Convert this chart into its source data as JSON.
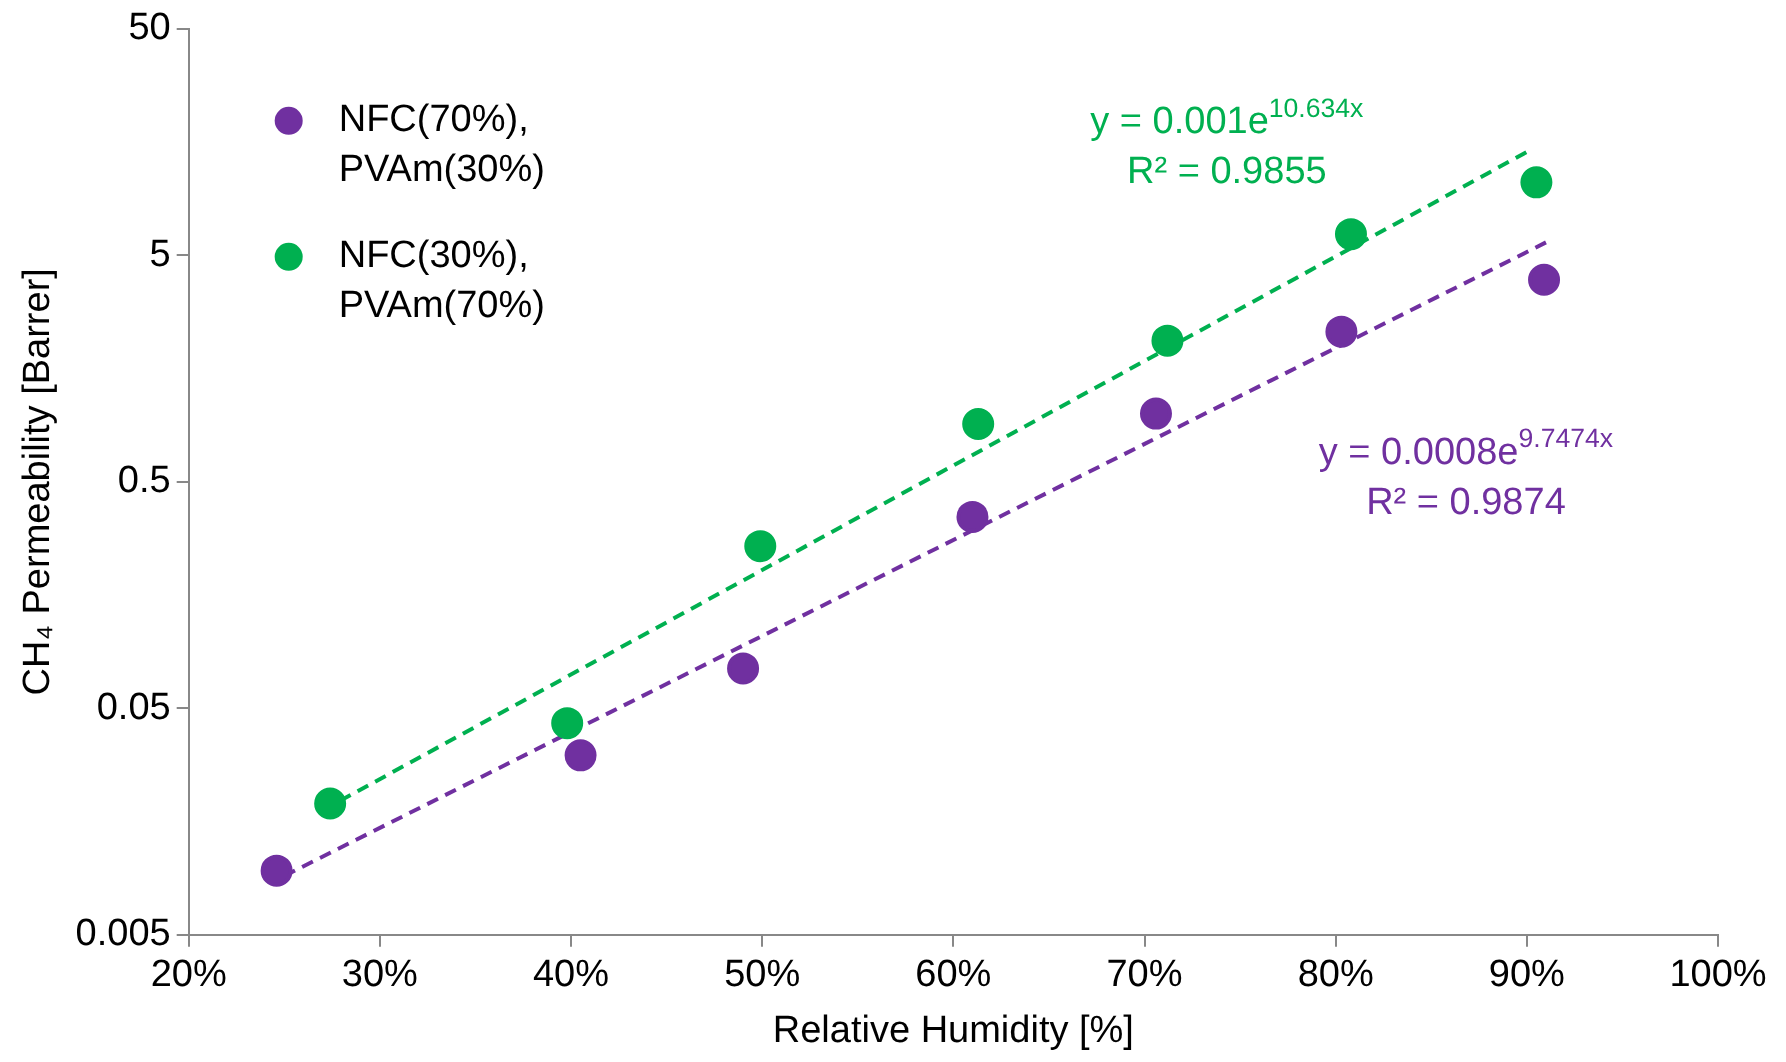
{
  "chart_data": {
    "type": "scatter",
    "xlabel": "Relative Humidity [%]",
    "ylabel": "CH₄ Permeability [Barrer]",
    "xlim": [
      20,
      100
    ],
    "xticks": [
      {
        "value": 20,
        "label": "20%"
      },
      {
        "value": 30,
        "label": "30%"
      },
      {
        "value": 40,
        "label": "40%"
      },
      {
        "value": 50,
        "label": "50%"
      },
      {
        "value": 60,
        "label": "60%"
      },
      {
        "value": 70,
        "label": "70%"
      },
      {
        "value": 80,
        "label": "80%"
      },
      {
        "value": 90,
        "label": "90%"
      },
      {
        "value": 100,
        "label": "100%"
      }
    ],
    "ylim": [
      0.005,
      50
    ],
    "yticks": [
      0.005,
      0.05,
      0.5,
      5,
      50
    ],
    "log": true,
    "grid": false,
    "legend": "top left",
    "marker": "circle",
    "series": [
      {
        "name": "NFC(70%), PVAm(30%)",
        "color": "#7030a0",
        "x": [
          24.6,
          40.5,
          49.0,
          61.0,
          70.6,
          80.3,
          90.9
        ],
        "values": [
          0.0096,
          0.031,
          0.075,
          0.35,
          1.0,
          2.3,
          3.9
        ]
      },
      {
        "name": "NFC(30%), PVAm(70%)",
        "color": "#00b050",
        "x": [
          27.4,
          39.8,
          49.9,
          61.3,
          71.2,
          80.8,
          90.5
        ],
        "values": [
          0.019,
          0.043,
          0.26,
          0.9,
          2.1,
          6.2,
          10.5
        ]
      },
      {
        "type": "line",
        "color": "#00b050",
        "line_style": "dashed",
        "marker": "none",
        "x": [
          27,
          90
        ],
        "values": [
          0.0177,
          14.3
        ]
      },
      {
        "type": "line",
        "color": "#7030a0",
        "line_style": "dashed",
        "marker": "none",
        "x": [
          25,
          91
        ],
        "values": [
          0.0091,
          5.7
        ]
      }
    ],
    "annotations": [
      "y = 0.001e$^{10.634x}$\nR² = 0.9855",
      "y = 0.0008e$^{9.7474x}$\nR² = 0.9874"
    ]
  }
}
